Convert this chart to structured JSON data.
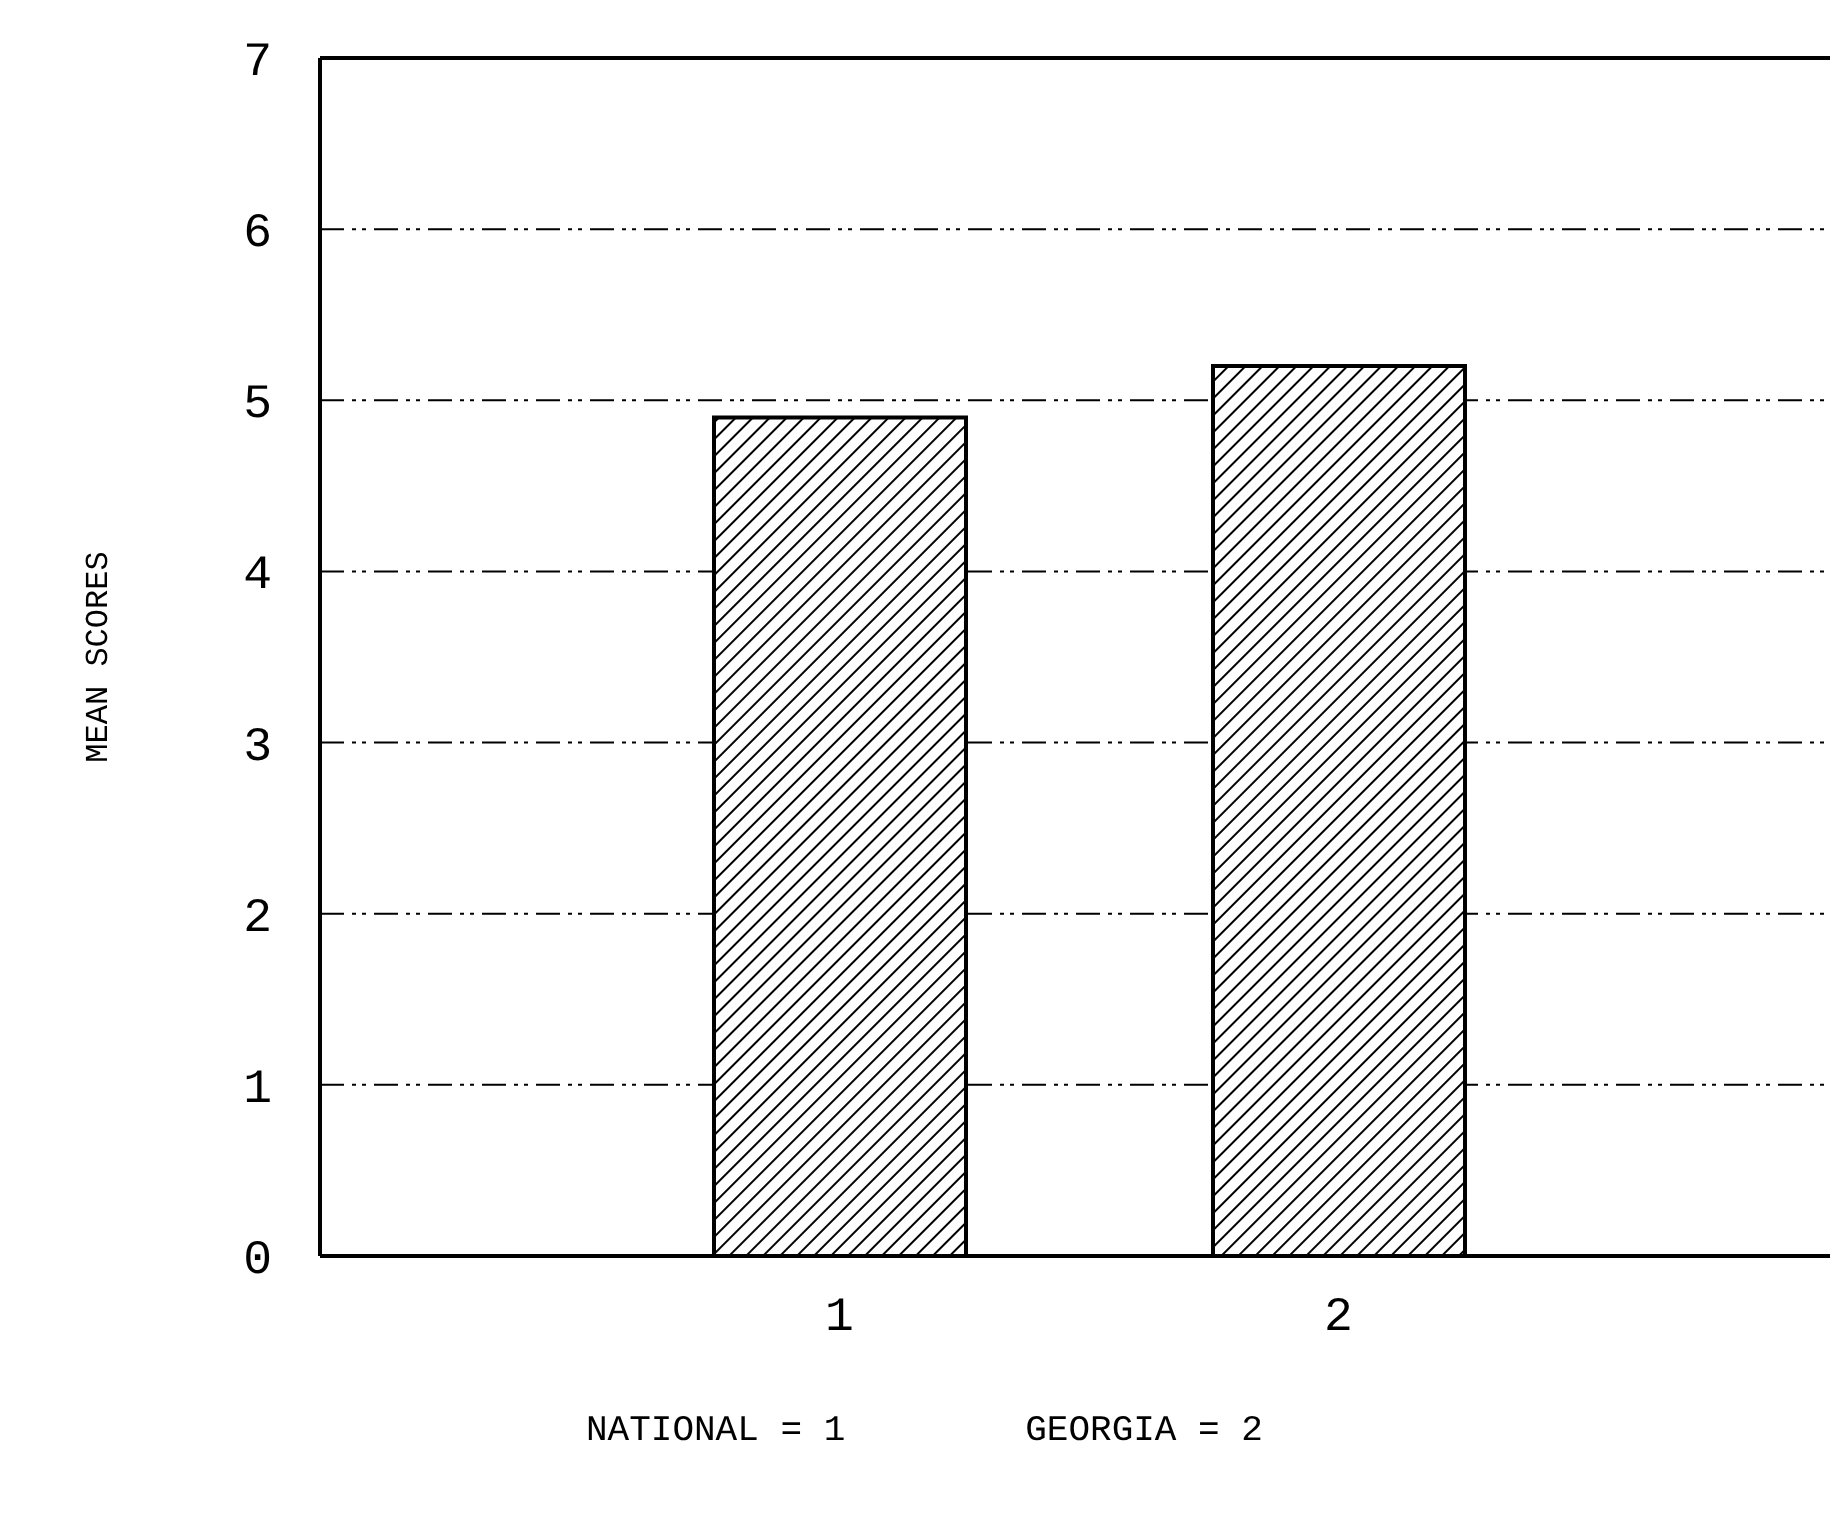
{
  "chart_data": {
    "type": "bar",
    "ylabel": "MEAN SCORES",
    "categories": [
      "1",
      "2"
    ],
    "series": [
      {
        "color": "#000000",
        "values": [
          4.9,
          5.2
        ]
      }
    ],
    "ylim": [
      0,
      7
    ],
    "yticks": [
      0,
      1,
      2,
      3,
      4,
      5,
      6,
      7
    ],
    "grid": "y",
    "annotations": [
      "NATIONAL = 1",
      "GEORGIA = 2"
    ]
  }
}
